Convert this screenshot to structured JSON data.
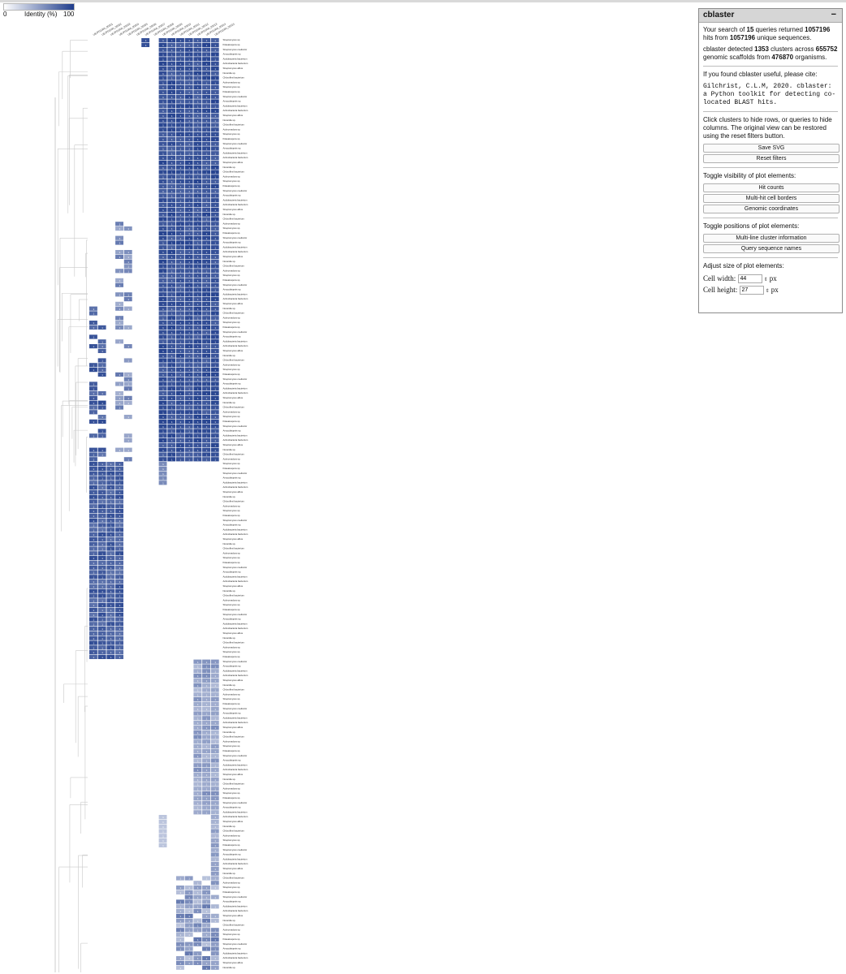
{
  "legend": {
    "min": "0",
    "label": "Identity (%)",
    "max": "100"
  },
  "panel": {
    "title": "cblaster",
    "collapse": "−",
    "summary1": {
      "pre": "Your search of ",
      "queries": "15",
      "mid": " queries returned ",
      "hits": "1057196",
      "mid2": " hits from ",
      "unique": "1057196",
      "post": " unique sequences."
    },
    "summary2": {
      "pre": "cblaster detected ",
      "clusters": "1353",
      "mid": " clusters across ",
      "scaffolds": "655752",
      "mid2": " genomic scaffolds from ",
      "organisms": "476870",
      "post": " organisms."
    },
    "cite_prompt": "If you found cblaster useful, please cite:",
    "citation": "Gilchrist, C.L.M, 2020. cblaster: a Python toolkit for detecting co-located BLAST hits.",
    "instructions": "Click clusters to hide rows, or queries to hide columns. The original view can be restored using the reset filters button.",
    "save_svg": "Save SVG",
    "reset_filters": "Reset filters",
    "visibility_title": "Toggle visibility of plot elements:",
    "hit_counts": "Hit counts",
    "multi_hit": "Multi-hit cell borders",
    "genomic_coords": "Genomic coordinates",
    "positions_title": "Toggle positions of plot elements:",
    "multiline": "Multi-line cluster information",
    "query_names": "Query sequence names",
    "size_title": "Adjust size of plot elements:",
    "cell_width_label": "Cell width:",
    "cell_width": "44",
    "cell_height_label": "Cell height:",
    "cell_height": "27",
    "px": "px"
  },
  "heatmap": {
    "columns": [
      "UEJP01000_00001",
      "UEJP01000_00002",
      "UEJP01000_00003",
      "UEJP01000_00004",
      "UEJP01000_00005",
      "UEJP01000_00006",
      "UEJP01000_00007",
      "UEJP01000_00008",
      "UEJP01000_00009",
      "UEJP01000_00010",
      "UEJP01000_00011",
      "UEJP01000_00012",
      "UEJP01000_00013",
      "UEJP01000_00014",
      "UEJP01000_00015"
    ],
    "cell_text": "1",
    "color_min": "#ffffff",
    "color_max": "#1f3d8c",
    "organisms": [
      "Streptomyces sp.",
      "Kitasatospora sp.",
      "Streptomyces coelicolor",
      "Amycolatopsis sp.",
      "Acidobacteria bacterium",
      "Actinobacteria bacterium",
      "Streptomyces albus",
      "Nocardia sp.",
      "Chloroflexi bacterium",
      "Actinomadura sp."
    ]
  }
}
